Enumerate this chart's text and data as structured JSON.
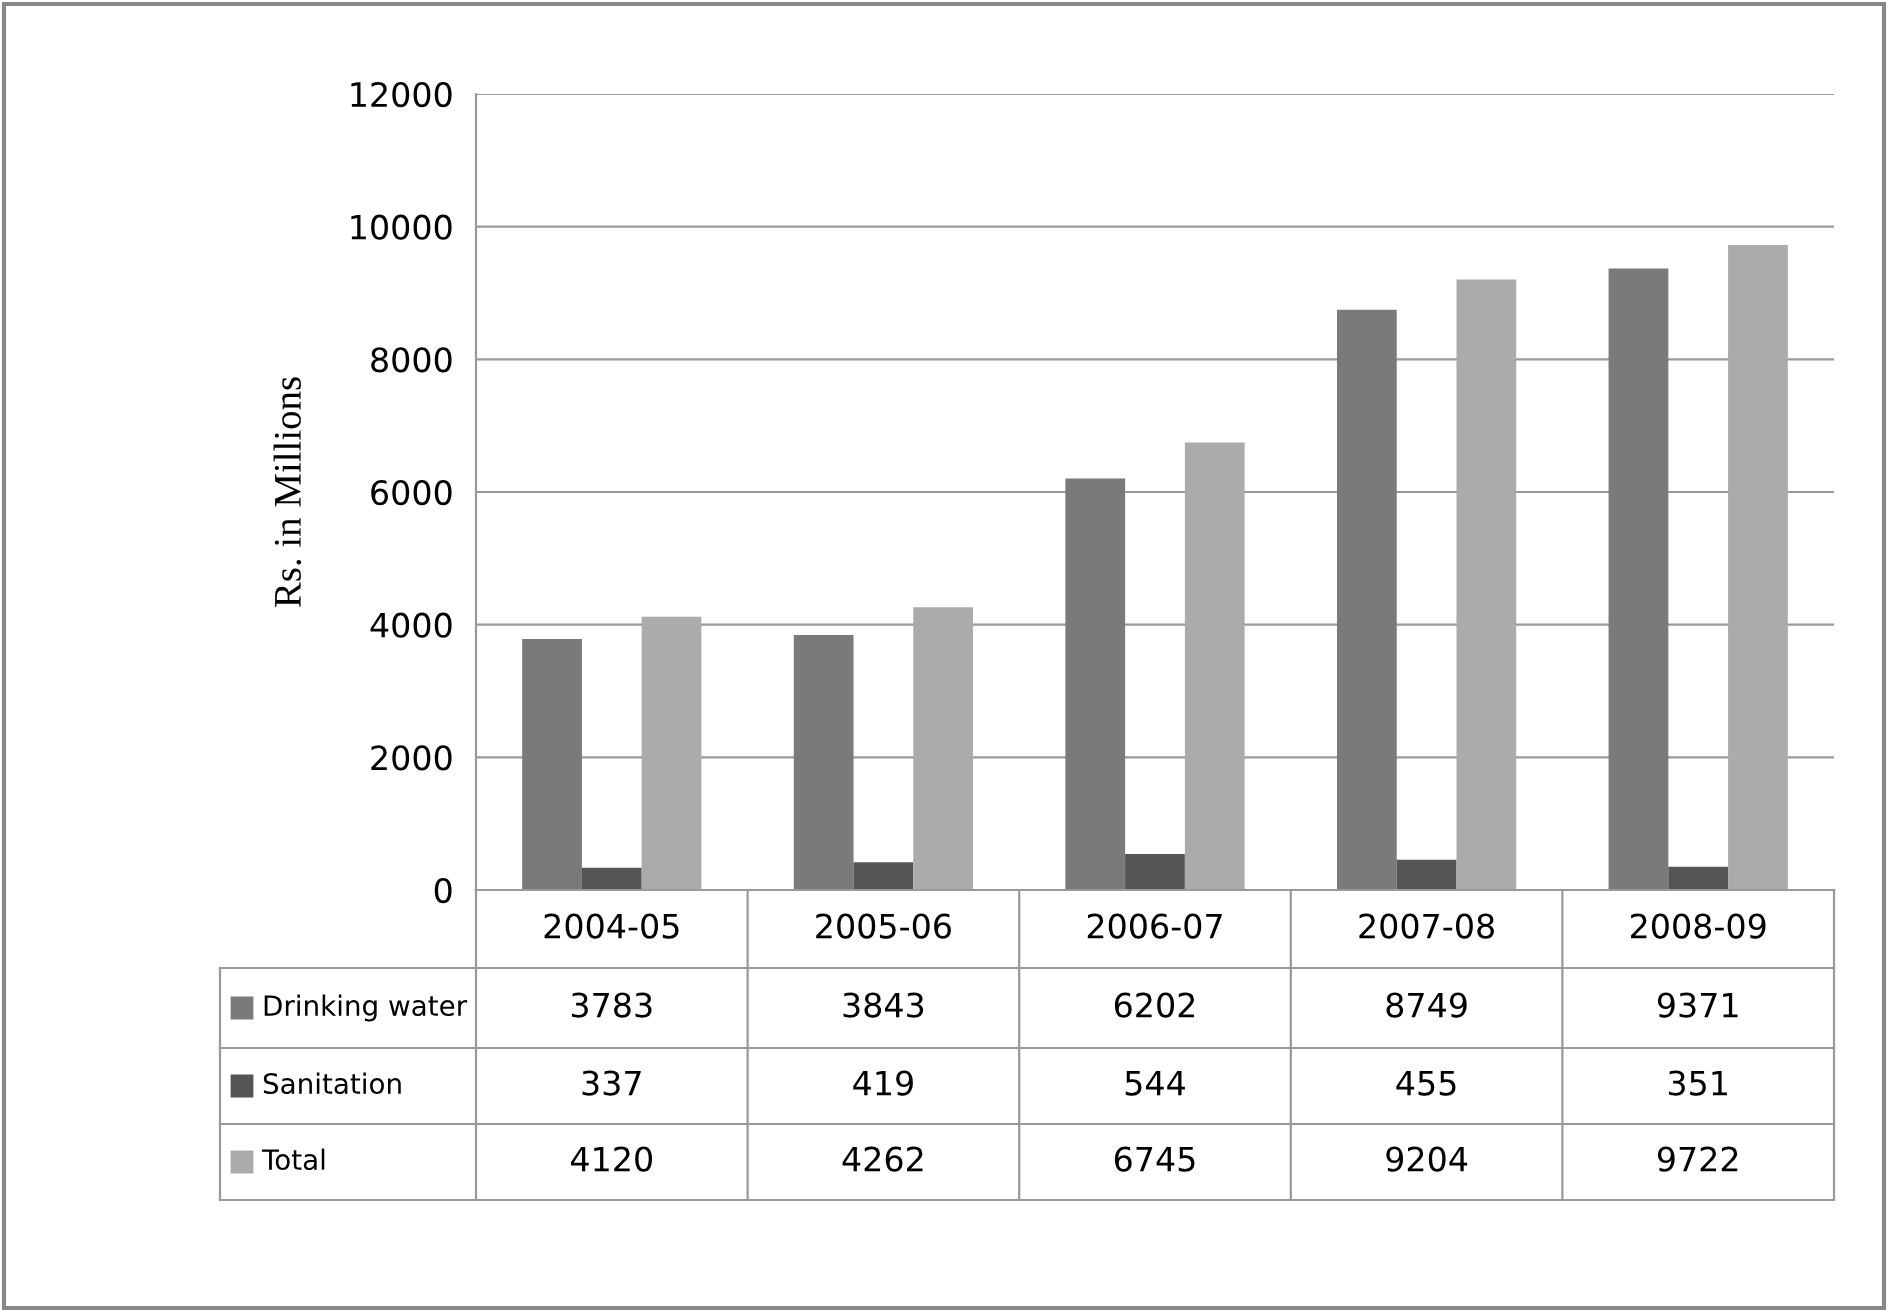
{
  "chart_data": {
    "type": "bar",
    "ylabel": "Rs. in Millions",
    "categories": [
      "2004-05",
      "2005-06",
      "2006-07",
      "2007-08",
      "2008-09"
    ],
    "series": [
      {
        "name": "Drinking water",
        "color": "#7a7a7a",
        "values": [
          3783,
          3843,
          6202,
          8749,
          9371
        ]
      },
      {
        "name": "Sanitation",
        "color": "#555555",
        "values": [
          337,
          419,
          544,
          455,
          351
        ]
      },
      {
        "name": "Total",
        "color": "#ababab",
        "values": [
          4120,
          4262,
          6745,
          9204,
          9722
        ]
      }
    ],
    "ylim": [
      0,
      12000
    ],
    "yticks": [
      0,
      2000,
      4000,
      6000,
      8000,
      10000,
      12000
    ],
    "grid": "y",
    "legend": "bottom",
    "data_labels": true
  }
}
